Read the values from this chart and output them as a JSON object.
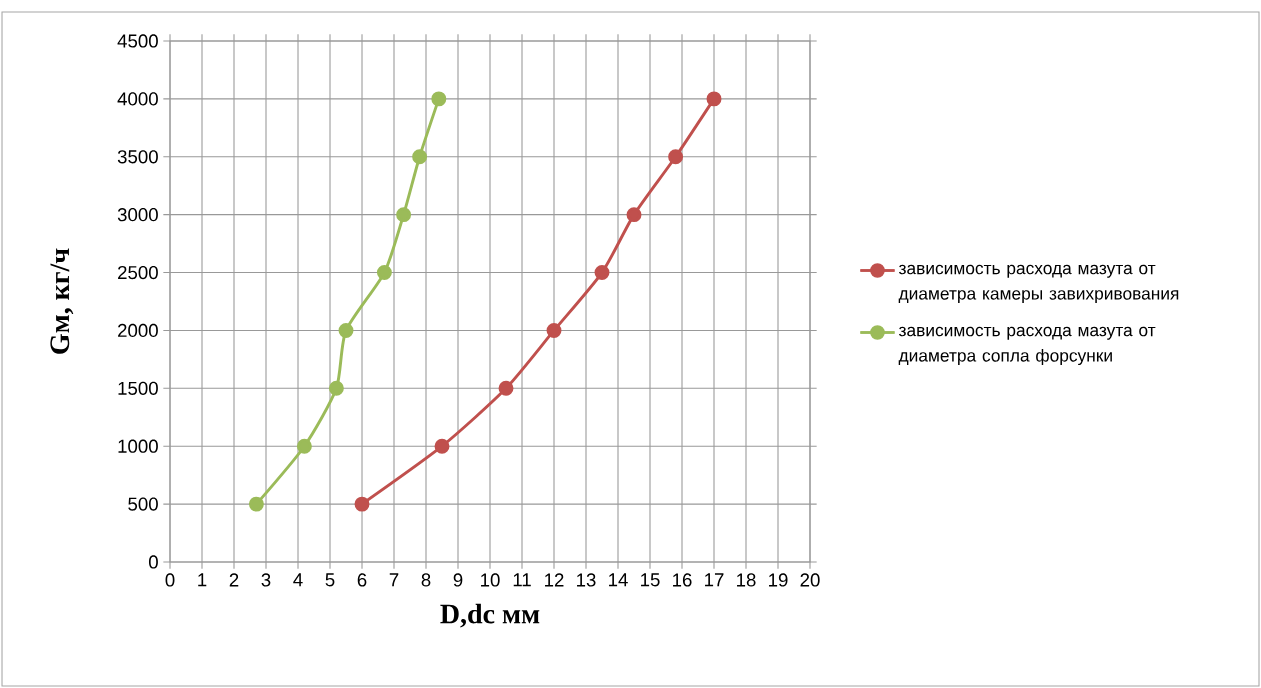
{
  "chart_data": {
    "type": "line",
    "xlabel": "D,dc мм",
    "ylabel": "Gм, кг/ч",
    "xlim": [
      0,
      20
    ],
    "xticks": [
      0,
      1,
      2,
      3,
      4,
      5,
      6,
      7,
      8,
      9,
      10,
      11,
      12,
      13,
      14,
      15,
      16,
      17,
      18,
      19,
      20
    ],
    "ylim": [
      0,
      4500
    ],
    "yticks": [
      0,
      500,
      1000,
      1500,
      2000,
      2500,
      3000,
      3500,
      4000,
      4500
    ],
    "grid": true,
    "legend": "right",
    "marker": "circle",
    "line_style": "solid",
    "series": [
      {
        "name": "зависимость расхода мазута от диаметра камеры завихривования",
        "color": "#c0504d",
        "x": [
          6,
          8.5,
          10.5,
          12,
          13.5,
          14.5,
          15.8,
          17
        ],
        "values": [
          500,
          1000,
          1500,
          2000,
          2500,
          3000,
          3500,
          4000
        ]
      },
      {
        "name": "зависимость расхода мазута от диаметра сопла форсунки",
        "color": "#9bbb59",
        "x": [
          2.7,
          4.2,
          5.2,
          5.5,
          6.7,
          7.3,
          7.8,
          8.4
        ],
        "values": [
          500,
          1000,
          1500,
          2000,
          2500,
          3000,
          3500,
          4000
        ]
      }
    ]
  }
}
